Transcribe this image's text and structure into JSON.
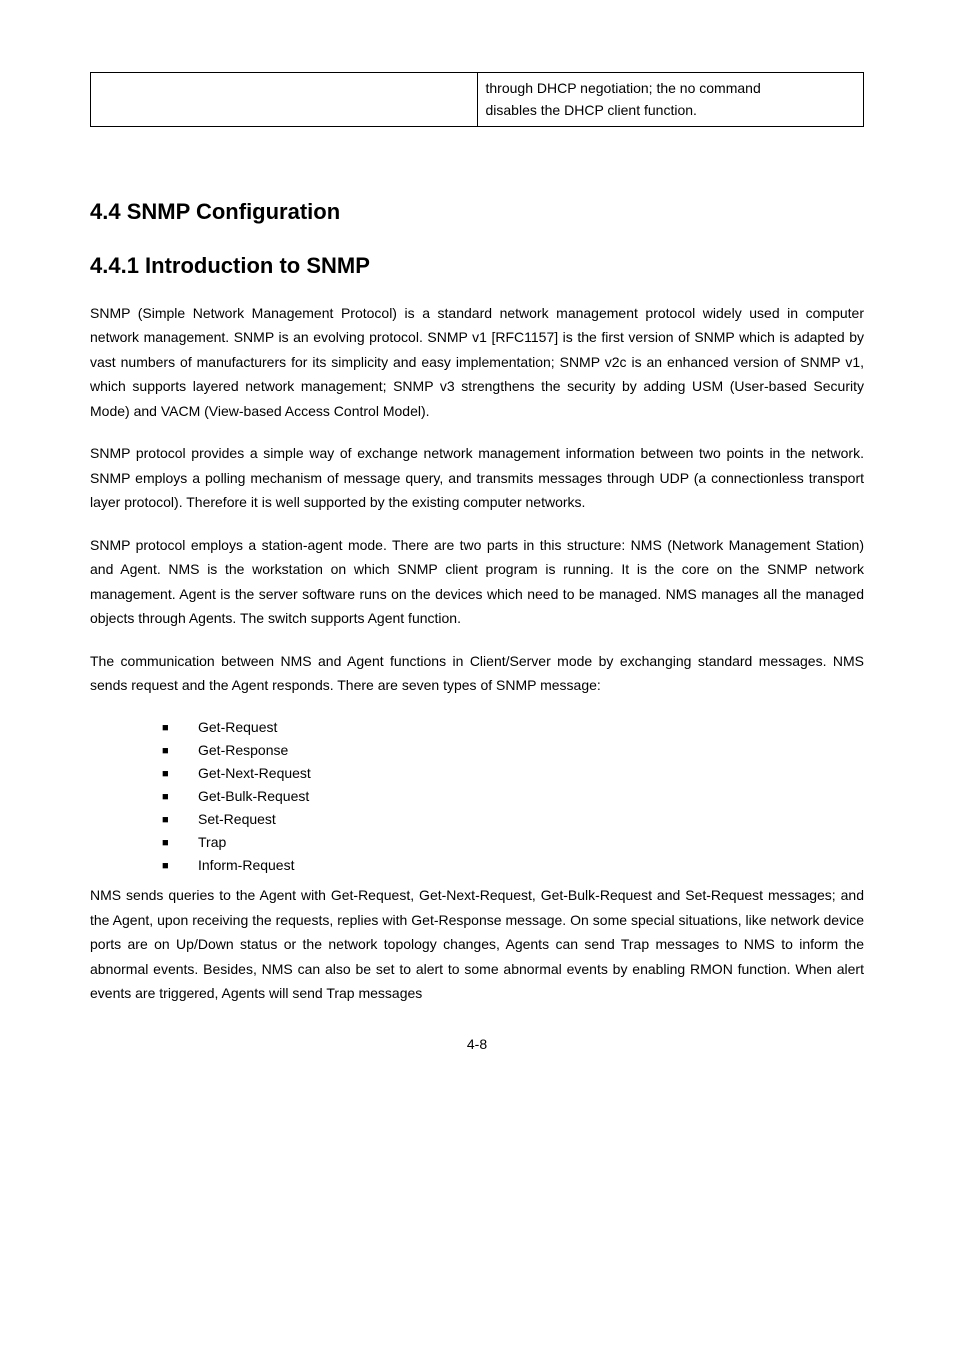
{
  "table": {
    "right_line1": "through DHCP negotiation; the no command",
    "right_line2": "disables the DHCP client function."
  },
  "h1": "4.4 SNMP Configuration",
  "h2": "4.4.1 Introduction to SNMP",
  "p1": "SNMP (Simple Network Management Protocol) is a standard network management protocol widely used in computer network management. SNMP is an evolving protocol. SNMP v1 [RFC1157] is the first version of SNMP which is adapted by vast numbers of manufacturers for its simplicity and easy implementation; SNMP v2c is an enhanced version of SNMP v1, which supports layered network management; SNMP v3 strengthens the security by adding USM (User-based Security Mode) and VACM (View-based Access Control Model).",
  "p2": "SNMP protocol provides a simple way of exchange network management information between two points in the network. SNMP employs a polling mechanism of message query, and transmits messages through UDP (a connectionless transport layer protocol). Therefore it is well supported by the existing computer networks.",
  "p3": "SNMP protocol employs a station-agent mode. There are two parts in this structure: NMS (Network Management Station) and Agent. NMS is the workstation on which SNMP client program is running. It is the core on the SNMP network management. Agent is the server software runs on the devices which need to be managed. NMS manages all the managed objects through Agents. The switch supports Agent function.",
  "p4": "The communication between NMS and Agent functions in Client/Server mode by exchanging standard messages. NMS sends request and the Agent responds. There are seven types of SNMP message:",
  "list": [
    "Get-Request",
    "Get-Response",
    "Get-Next-Request",
    "Get-Bulk-Request",
    "Set-Request",
    "Trap",
    "Inform-Request"
  ],
  "p5": "NMS sends queries to the Agent with Get-Request, Get-Next-Request, Get-Bulk-Request and Set-Request messages; and the Agent, upon receiving the requests, replies with Get-Response message. On some special situations, like network device ports are on Up/Down status or the network topology changes, Agents can send Trap messages to NMS to inform the abnormal events. Besides, NMS can also be set to alert to some abnormal events by enabling RMON function. When alert events are triggered, Agents will send Trap messages",
  "page_num": "4-8"
}
